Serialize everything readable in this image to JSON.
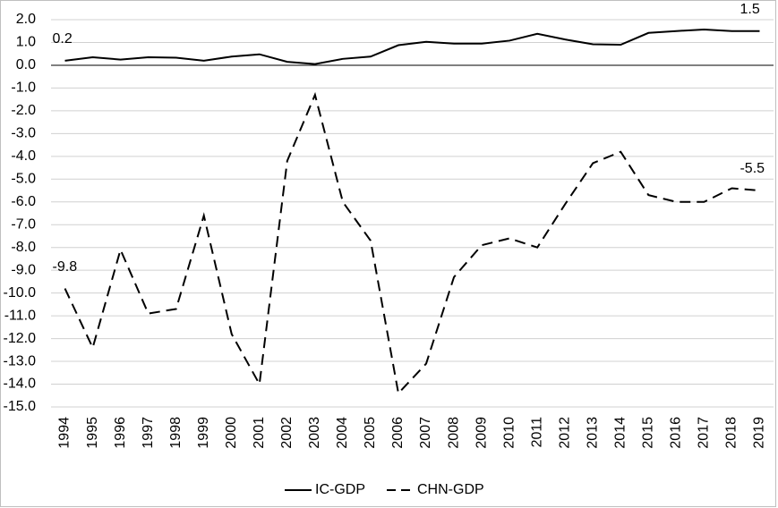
{
  "chart_data": {
    "type": "line",
    "categories": [
      "1994",
      "1995",
      "1996",
      "1997",
      "1998",
      "1999",
      "2000",
      "2001",
      "2002",
      "2003",
      "2004",
      "2005",
      "2006",
      "2007",
      "2008",
      "2009",
      "2010",
      "2011",
      "2012",
      "2013",
      "2014",
      "2015",
      "2016",
      "2017",
      "2018",
      "2019"
    ],
    "series": [
      {
        "name": "IC-GDP",
        "color": "#000000",
        "dash": false,
        "values": [
          0.2,
          0.35,
          0.25,
          0.35,
          0.33,
          0.2,
          0.38,
          0.48,
          0.15,
          0.05,
          0.28,
          0.38,
          0.88,
          1.03,
          0.95,
          0.95,
          1.08,
          1.38,
          1.13,
          0.92,
          0.9,
          1.42,
          1.5,
          1.57,
          1.5,
          1.5
        ]
      },
      {
        "name": "CHN-GDP",
        "color": "#000000",
        "dash": true,
        "values": [
          -9.8,
          -12.4,
          -8.1,
          -10.9,
          -10.7,
          -6.6,
          -11.8,
          -14.0,
          -4.2,
          -1.3,
          -6.0,
          -7.7,
          -14.4,
          -13.1,
          -9.3,
          -7.9,
          -7.6,
          -8.0,
          -6.1,
          -4.3,
          -3.8,
          -5.7,
          -6.0,
          -6.0,
          -5.4,
          -5.5
        ]
      }
    ],
    "ylim": [
      -15,
      2
    ],
    "yticks": [
      {
        "value": 2,
        "label": "2.0"
      },
      {
        "value": 1,
        "label": "1.0"
      },
      {
        "value": 0,
        "label": "0.0"
      },
      {
        "value": -1,
        "label": "-1.0"
      },
      {
        "value": -2,
        "label": "-2.0"
      },
      {
        "value": -3,
        "label": "-3.0"
      },
      {
        "value": -4,
        "label": "-4.0"
      },
      {
        "value": -5,
        "label": "-5.0"
      },
      {
        "value": -6,
        "label": "-6.0"
      },
      {
        "value": -7,
        "label": "-7.0"
      },
      {
        "value": -8,
        "label": "-8.0"
      },
      {
        "value": -9,
        "label": "-9.0"
      },
      {
        "value": -10,
        "label": "-10.0"
      },
      {
        "value": -11,
        "label": "-11.0"
      },
      {
        "value": -12,
        "label": "-12.0"
      },
      {
        "value": -13,
        "label": "-13.0"
      },
      {
        "value": -14,
        "label": "-14.0"
      },
      {
        "value": -15,
        "label": "-15.0"
      }
    ],
    "grid": true,
    "legend": "bottom"
  }
}
